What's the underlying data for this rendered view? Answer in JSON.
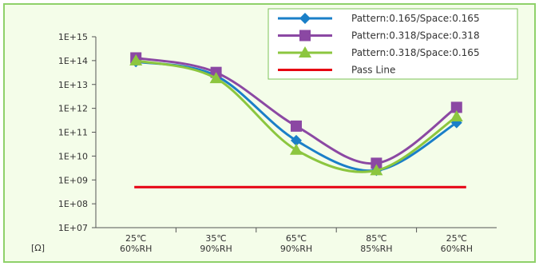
{
  "chart_data": {
    "type": "line",
    "y_scale": "log",
    "y_unit_label": "[Ω]",
    "y_ticks": [
      "1E+07",
      "1E+08",
      "1E+09",
      "1E+10",
      "1E+11",
      "1E+12",
      "1E+13",
      "1E+14",
      "1E+15"
    ],
    "y_tick_values": [
      10000000.0,
      100000000.0,
      1000000000.0,
      10000000000.0,
      100000000000.0,
      1000000000000.0,
      10000000000000.0,
      100000000000000.0,
      1000000000000000.0
    ],
    "ylim": [
      10000000.0,
      1000000000000000.0
    ],
    "categories": [
      [
        "25℃",
        "60%RH"
      ],
      [
        "35℃",
        "90%RH"
      ],
      [
        "65℃",
        "90%RH"
      ],
      [
        "85℃",
        "85%RH"
      ],
      [
        "25℃",
        "60%RH"
      ]
    ],
    "grid": false,
    "legend_position": "top-right",
    "series": [
      {
        "name": "Pattern:0.165/Space:0.165",
        "color": "#1a7fc8",
        "marker": "diamond",
        "values": [
          90000000000000.0,
          23000000000000.0,
          45000000000.0,
          2500000000.0,
          250000000000.0
        ]
      },
      {
        "name": "Pattern:0.318/Space:0.318",
        "color": "#8b48a3",
        "marker": "square",
        "values": [
          130000000000000.0,
          32000000000000.0,
          180000000000.0,
          5000000000.0,
          1100000000000.0
        ]
      },
      {
        "name": "Pattern:0.318/Space:0.165",
        "color": "#8cc63f",
        "marker": "triangle",
        "values": [
          100000000000000.0,
          18000000000000.0,
          18000000000.0,
          2500000000.0,
          450000000000.0
        ]
      },
      {
        "name": "Pass Line",
        "color": "#e60012",
        "marker": "none",
        "values": [
          500000000.0,
          500000000.0,
          500000000.0,
          500000000.0,
          500000000.0
        ]
      }
    ]
  }
}
